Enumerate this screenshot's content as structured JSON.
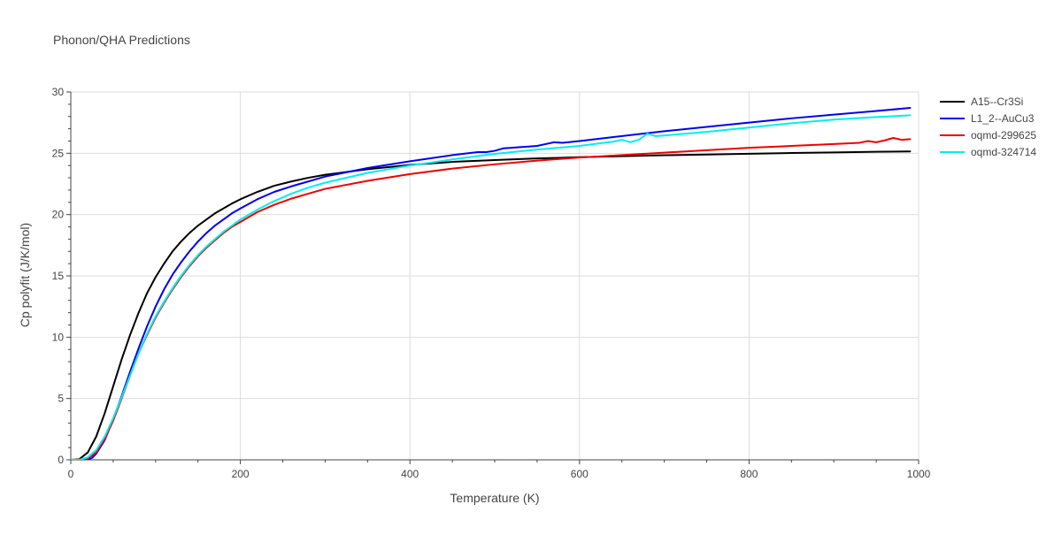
{
  "chart_data": {
    "type": "line",
    "title": "Phonon/QHA Predictions",
    "xlabel": "Temperature (K)",
    "ylabel": "Cp polyfit (J/K/mol)",
    "xlim": [
      0,
      1000
    ],
    "ylim": [
      0,
      30
    ],
    "xticks": [
      0,
      200,
      400,
      600,
      800,
      1000
    ],
    "yticks": [
      0,
      5,
      10,
      15,
      20,
      25,
      30
    ],
    "grid": true,
    "legend_position": "top-right",
    "series": [
      {
        "name": "A15--Cr3Si",
        "color": "#000000",
        "x": [
          0,
          10,
          20,
          30,
          40,
          50,
          60,
          70,
          80,
          90,
          100,
          110,
          120,
          130,
          140,
          150,
          160,
          170,
          180,
          190,
          200,
          220,
          240,
          260,
          280,
          300,
          350,
          400,
          450,
          500,
          550,
          600,
          650,
          700,
          750,
          800,
          850,
          900,
          950,
          990
        ],
        "y": [
          0,
          0.05,
          0.6,
          1.9,
          3.8,
          6.0,
          8.2,
          10.2,
          12.0,
          13.6,
          14.9,
          16.0,
          17.0,
          17.8,
          18.5,
          19.1,
          19.6,
          20.1,
          20.5,
          20.9,
          21.25,
          21.85,
          22.35,
          22.7,
          23.0,
          23.25,
          23.7,
          24.05,
          24.3,
          24.45,
          24.58,
          24.68,
          24.76,
          24.84,
          24.9,
          24.96,
          25.02,
          25.07,
          25.12,
          25.15
        ]
      },
      {
        "name": "L1_2--AuCu3",
        "color": "#0000ee",
        "x": [
          0,
          10,
          20,
          25,
          30,
          40,
          50,
          60,
          70,
          80,
          90,
          100,
          110,
          120,
          130,
          140,
          150,
          160,
          170,
          180,
          190,
          200,
          220,
          240,
          260,
          280,
          300,
          350,
          400,
          450,
          480,
          490,
          500,
          510,
          520,
          530,
          540,
          550,
          560,
          570,
          580,
          600,
          650,
          700,
          750,
          800,
          850,
          900,
          950,
          990
        ],
        "y": [
          0,
          0,
          0.05,
          0.15,
          0.5,
          1.6,
          3.3,
          5.2,
          7.2,
          9.1,
          10.9,
          12.5,
          13.9,
          15.1,
          16.1,
          17.0,
          17.8,
          18.5,
          19.1,
          19.6,
          20.1,
          20.5,
          21.25,
          21.85,
          22.3,
          22.7,
          23.1,
          23.8,
          24.35,
          24.85,
          25.1,
          25.1,
          25.2,
          25.4,
          25.45,
          25.5,
          25.55,
          25.6,
          25.75,
          25.9,
          25.85,
          26.0,
          26.4,
          26.8,
          27.15,
          27.5,
          27.85,
          28.15,
          28.45,
          28.7
        ]
      },
      {
        "name": "oqmd-299625",
        "color": "#ee0000",
        "x": [
          0,
          10,
          20,
          30,
          40,
          50,
          60,
          70,
          80,
          90,
          100,
          110,
          120,
          130,
          140,
          150,
          160,
          170,
          180,
          190,
          200,
          220,
          240,
          260,
          280,
          300,
          350,
          400,
          450,
          500,
          550,
          600,
          650,
          700,
          750,
          800,
          850,
          900,
          930,
          940,
          950,
          960,
          970,
          980,
          990
        ],
        "y": [
          0,
          0,
          0.1,
          0.6,
          1.7,
          3.2,
          5.0,
          6.9,
          8.7,
          10.2,
          11.6,
          12.8,
          13.9,
          14.9,
          15.8,
          16.6,
          17.3,
          17.9,
          18.5,
          19.0,
          19.4,
          20.2,
          20.8,
          21.3,
          21.7,
          22.1,
          22.75,
          23.3,
          23.75,
          24.1,
          24.4,
          24.65,
          24.85,
          25.05,
          25.25,
          25.45,
          25.6,
          25.75,
          25.85,
          26.0,
          25.9,
          26.05,
          26.25,
          26.1,
          26.15
        ]
      },
      {
        "name": "oqmd-324714",
        "color": "#00eeee",
        "x": [
          0,
          10,
          20,
          30,
          40,
          50,
          60,
          70,
          80,
          90,
          100,
          110,
          120,
          130,
          140,
          150,
          160,
          170,
          180,
          190,
          200,
          220,
          240,
          260,
          280,
          300,
          350,
          400,
          450,
          500,
          550,
          600,
          640,
          650,
          660,
          670,
          680,
          690,
          700,
          750,
          800,
          850,
          900,
          950,
          990
        ],
        "y": [
          0,
          0,
          0.2,
          0.8,
          1.9,
          3.4,
          5.1,
          6.9,
          8.7,
          10.3,
          11.7,
          12.9,
          14.0,
          15.0,
          15.9,
          16.7,
          17.4,
          18.0,
          18.6,
          19.1,
          19.6,
          20.4,
          21.1,
          21.7,
          22.2,
          22.6,
          23.4,
          24.0,
          24.5,
          24.95,
          25.3,
          25.6,
          25.95,
          26.1,
          25.9,
          26.1,
          26.6,
          26.4,
          26.45,
          26.75,
          27.1,
          27.45,
          27.75,
          27.95,
          28.1
        ]
      }
    ]
  }
}
